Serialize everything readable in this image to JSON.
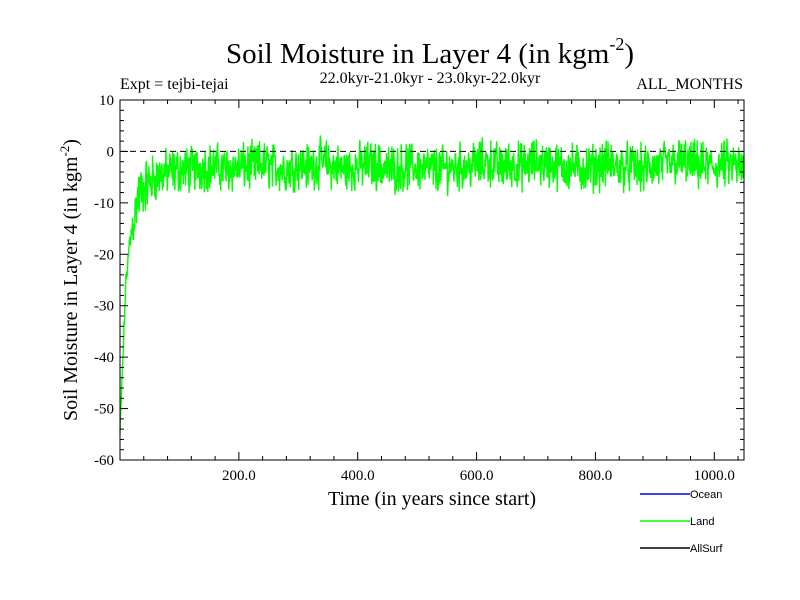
{
  "colors": {
    "ocean": "#0000ff",
    "land": "#00ff00",
    "allsurf": "#000000",
    "axis": "#000000"
  },
  "chart_data": {
    "type": "line",
    "title_main": "Soil Moisture in Layer 4 (in kgm",
    "title_sup": "-2",
    "title_close": ")",
    "subtitle": "22.0kyr-21.0kyr - 23.0kyr-22.0kyr",
    "expt_label": "Expt = tejbi-tejai",
    "months_label": "ALL_MONTHS",
    "xlabel": "Time (in years since start)",
    "ylabel_main": "Soil Moisture in Layer 4 (in kgm",
    "ylabel_sup": "-2",
    "ylabel_close": ")",
    "xlim": [
      0,
      1050
    ],
    "ylim": [
      -60,
      10
    ],
    "xticks": [
      200,
      400,
      600,
      800,
      1000
    ],
    "xtick_labels": [
      "200.0",
      "400.0",
      "600.0",
      "800.0",
      "1000.0"
    ],
    "yticks": [
      10,
      0,
      -10,
      -20,
      -30,
      -40,
      -50,
      -60
    ],
    "ytick_labels": [
      "10",
      "0",
      "-10",
      "-20",
      "-30",
      "-40",
      "-50",
      "-60"
    ],
    "reference_line": 0,
    "legend": [
      {
        "name": "Ocean",
        "color": "#0000ff"
      },
      {
        "name": "Land",
        "color": "#00ff00"
      },
      {
        "name": "AllSurf",
        "color": "#000000"
      }
    ],
    "series": [
      {
        "name": "Land",
        "color": "#00ff00",
        "x": [
          0,
          10,
          20,
          30,
          40,
          50,
          60,
          70,
          80,
          90,
          100,
          120,
          140,
          160,
          180,
          200,
          220,
          240,
          260,
          280,
          300,
          320,
          340,
          360,
          380,
          400,
          420,
          440,
          460,
          480,
          500,
          520,
          540,
          560,
          580,
          600,
          620,
          640,
          660,
          680,
          700,
          720,
          740,
          760,
          780,
          800,
          820,
          840,
          860,
          880,
          900,
          920,
          940,
          960,
          980,
          1000,
          1020,
          1040,
          1050
        ],
        "y": [
          -55,
          -25,
          -15,
          -9,
          -7,
          -6,
          -5,
          -4.5,
          -4,
          -4,
          -3.5,
          -3.5,
          -3,
          -3,
          -3.5,
          -3,
          -3,
          -2.5,
          -3,
          -3.5,
          -2.5,
          -3,
          -2,
          -3,
          -3.5,
          -3,
          -2.5,
          -3,
          -3.5,
          -3,
          -3,
          -3.5,
          -3.5,
          -3,
          -3,
          -2.5,
          -2,
          -3,
          -2.5,
          -3,
          -2,
          -2.5,
          -3,
          -3,
          -3.5,
          -3,
          -2.5,
          -3,
          -3,
          -3.5,
          -3,
          -2.5,
          -2,
          -2.5,
          -3,
          -3,
          -2.5,
          -3,
          -4
        ]
      }
    ]
  }
}
